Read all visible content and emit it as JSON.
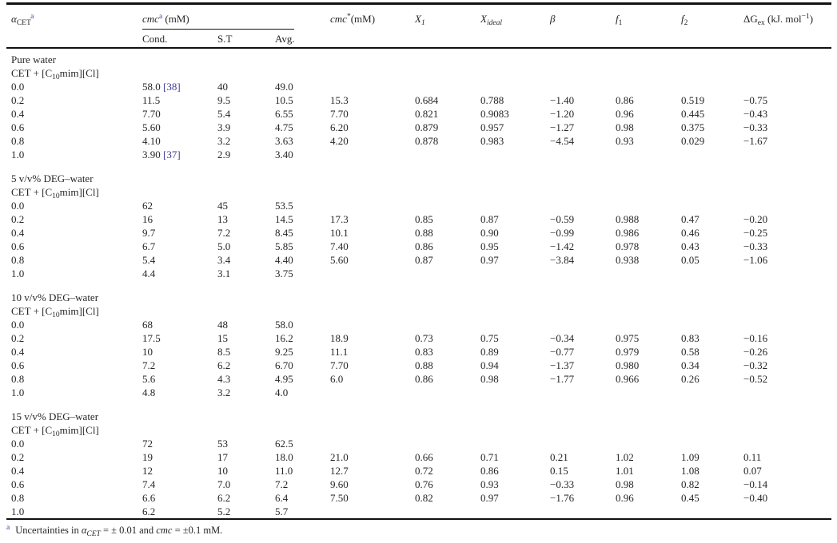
{
  "header": {
    "alpha": "α",
    "alpha_sub": "CET",
    "alpha_fn_marker": "a",
    "cmc_label": "cmc",
    "cmc_fn_marker": "a",
    "cmc_unit": " (mM)",
    "sub_cond": "Cond.",
    "sub_st": "S.T",
    "sub_avg": "Avg.",
    "cmcstar_label": "cmc",
    "cmcstar_sup": "*",
    "cmcstar_unit": "(mM)",
    "x_label": "X",
    "x1_sub": "1",
    "xideal_sub": "ideal",
    "beta_label": "β",
    "f_label": "f",
    "f1_sub": "1",
    "f2_sub": "2",
    "dg_label": "ΔG",
    "dg_sub": "ex",
    "dg_unit_open": " (kJ. mol",
    "dg_exponent": "−1",
    "dg_unit_close": ")"
  },
  "columns": [
    "alpha-cet",
    "cmc-cond",
    "cmc-st",
    "cmc-avg",
    "cmc-star",
    "x1",
    "x-ideal",
    "beta",
    "f1",
    "f2",
    "dg-ex"
  ],
  "sections": [
    {
      "solvent": "Pure water",
      "system_prefix": "CET + [C",
      "system_sub": "10",
      "system_suffix": "mim][Cl]",
      "rows": [
        {
          "cells": [
            "0.0",
            "58.0",
            "40",
            "49.0",
            "",
            "",
            "",
            "",
            "",
            "",
            ""
          ],
          "ref": "[38]",
          "ref_col": 1
        },
        {
          "cells": [
            "0.2",
            "11.5",
            "9.5",
            "10.5",
            "15.3",
            "0.684",
            "0.788",
            "−1.40",
            "0.86",
            "0.519",
            "−0.75"
          ]
        },
        {
          "cells": [
            "0.4",
            "7.70",
            "5.4",
            "6.55",
            "7.70",
            "0.821",
            "0.9083",
            "−1.20",
            "0.96",
            "0.445",
            "−0.43"
          ]
        },
        {
          "cells": [
            "0.6",
            "5.60",
            "3.9",
            "4.75",
            "6.20",
            "0.879",
            "0.957",
            "−1.27",
            "0.98",
            "0.375",
            "−0.33"
          ]
        },
        {
          "cells": [
            "0.8",
            "4.10",
            "3.2",
            "3.63",
            "4.20",
            "0.878",
            "0.983",
            "−4.54",
            "0.93",
            "0.029",
            "−1.67"
          ]
        },
        {
          "cells": [
            "1.0",
            "3.90",
            "2.9",
            "3.40",
            "",
            "",
            "",
            "",
            "",
            "",
            ""
          ],
          "ref": "[37]",
          "ref_col": 1
        }
      ]
    },
    {
      "solvent": "5 v/v% DEG–water",
      "system_prefix": "CET + [C",
      "system_sub": "10",
      "system_suffix": "mim][Cl]",
      "rows": [
        {
          "cells": [
            "0.0",
            "62",
            "45",
            "53.5",
            "",
            "",
            "",
            "",
            "",
            "",
            ""
          ]
        },
        {
          "cells": [
            "0.2",
            "16",
            "13",
            "14.5",
            "17.3",
            "0.85",
            "0.87",
            "−0.59",
            "0.988",
            "0.47",
            "−0.20"
          ]
        },
        {
          "cells": [
            "0.4",
            "9.7",
            "7.2",
            "8.45",
            "10.1",
            "0.88",
            "0.90",
            "−0.99",
            "0.986",
            "0.46",
            "−0.25"
          ]
        },
        {
          "cells": [
            "0.6",
            "6.7",
            "5.0",
            "5.85",
            "7.40",
            "0.86",
            "0.95",
            "−1.42",
            "0.978",
            "0.43",
            "−0.33"
          ]
        },
        {
          "cells": [
            "0.8",
            "5.4",
            "3.4",
            "4.40",
            "5.60",
            "0.87",
            "0.97",
            "−3.84",
            "0.938",
            "0.05",
            "−1.06"
          ]
        },
        {
          "cells": [
            "1.0",
            "4.4",
            "3.1",
            "3.75",
            "",
            "",
            "",
            "",
            "",
            "",
            ""
          ]
        }
      ]
    },
    {
      "solvent": "10 v/v% DEG–water",
      "system_prefix": "CET + [C",
      "system_sub": "10",
      "system_suffix": "mim][Cl]",
      "rows": [
        {
          "cells": [
            "0.0",
            "68",
            "48",
            "58.0",
            "",
            "",
            "",
            "",
            "",
            "",
            ""
          ]
        },
        {
          "cells": [
            "0.2",
            "17.5",
            "15",
            "16.2",
            "18.9",
            "0.73",
            "0.75",
            "−0.34",
            "0.975",
            "0.83",
            "−0.16"
          ]
        },
        {
          "cells": [
            "0.4",
            "10",
            "8.5",
            "9.25",
            "11.1",
            "0.83",
            "0.89",
            "−0.77",
            "0.979",
            "0.58",
            "−0.26"
          ]
        },
        {
          "cells": [
            "0.6",
            "7.2",
            "6.2",
            "6.70",
            "7.70",
            "0.88",
            "0.94",
            "−1.37",
            "0.980",
            "0.34",
            "−0.32"
          ]
        },
        {
          "cells": [
            "0.8",
            "5.6",
            "4.3",
            "4.95",
            "6.0",
            "0.86",
            "0.98",
            "−1.77",
            "0.966",
            "0.26",
            "−0.52"
          ]
        },
        {
          "cells": [
            "1.0",
            "4.8",
            "3.2",
            "4.0",
            "",
            "",
            "",
            "",
            "",
            "",
            ""
          ]
        }
      ]
    },
    {
      "solvent": "15 v/v% DEG–water",
      "system_prefix": "CET + [C",
      "system_sub": "10",
      "system_suffix": "mim][Cl]",
      "rows": [
        {
          "cells": [
            "0.0",
            "72",
            "53",
            "62.5",
            "",
            "",
            "",
            "",
            "",
            "",
            ""
          ]
        },
        {
          "cells": [
            "0.2",
            "19",
            "17",
            "18.0",
            "21.0",
            "0.66",
            "0.71",
            "0.21",
            "1.02",
            "1.09",
            "0.11"
          ]
        },
        {
          "cells": [
            "0.4",
            "12",
            "10",
            "11.0",
            "12.7",
            "0.72",
            "0.86",
            "0.15",
            "1.01",
            "1.08",
            "0.07"
          ]
        },
        {
          "cells": [
            "0.6",
            "7.4",
            "7.0",
            "7.2",
            "9.60",
            "0.76",
            "0.93",
            "−0.33",
            "0.98",
            "0.82",
            "−0.14"
          ]
        },
        {
          "cells": [
            "0.8",
            "6.6",
            "6.2",
            "6.4",
            "7.50",
            "0.82",
            "0.97",
            "−1.76",
            "0.96",
            "0.45",
            "−0.40"
          ]
        },
        {
          "cells": [
            "1.0",
            "6.2",
            "5.2",
            "5.7",
            "",
            "",
            "",
            "",
            "",
            "",
            ""
          ]
        }
      ]
    }
  ],
  "footnote": {
    "marker": "a",
    "text_1": "Uncertainties in ",
    "alpha": "α",
    "alpha_sub": "CET",
    "text_2": " = ± 0.01 and ",
    "cmc": "cmc",
    "text_3": " = ±0.1 mM."
  },
  "colors": {
    "citation_blue": "#3c3c96",
    "rule_black": "#111111",
    "text": "#262626"
  }
}
